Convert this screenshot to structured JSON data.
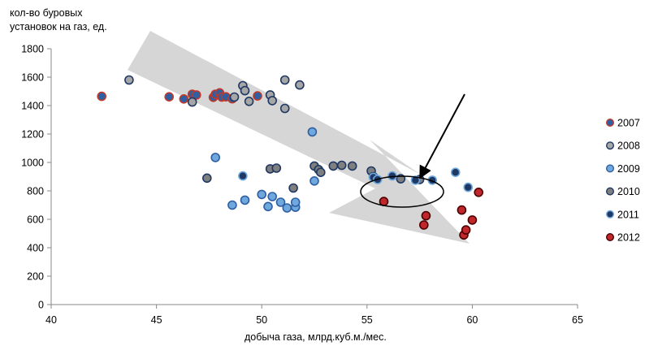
{
  "chart_data": {
    "type": "scatter",
    "ylabel_lines": [
      "кол-во буровых",
      "установок на газ, ед."
    ],
    "xlabel": "добыча газа, млрд.куб.м./мес.",
    "xlim": [
      40,
      65
    ],
    "ylim": [
      0,
      1800
    ],
    "xticks": [
      40,
      45,
      50,
      55,
      60,
      65
    ],
    "yticks": [
      0,
      200,
      400,
      600,
      800,
      1000,
      1200,
      1400,
      1600,
      1800
    ],
    "grid": false,
    "legend_position": "right",
    "series": [
      {
        "name": "2007",
        "color": "#2e5fa3",
        "stroke": "#c0392b",
        "points": [
          [
            42.4,
            1465
          ],
          [
            45.6,
            1462
          ],
          [
            46.3,
            1447
          ],
          [
            46.7,
            1480
          ],
          [
            46.9,
            1475
          ],
          [
            47.7,
            1458
          ],
          [
            47.8,
            1480
          ],
          [
            48.0,
            1490
          ],
          [
            48.1,
            1460
          ],
          [
            48.3,
            1462
          ],
          [
            48.6,
            1448
          ],
          [
            49.8,
            1468
          ]
        ]
      },
      {
        "name": "2008",
        "color": "#a6a6a6",
        "stroke": "#1f3864",
        "points": [
          [
            43.7,
            1580
          ],
          [
            46.7,
            1425
          ],
          [
            48.7,
            1460
          ],
          [
            49.1,
            1540
          ],
          [
            49.2,
            1505
          ],
          [
            49.4,
            1430
          ],
          [
            50.4,
            1475
          ],
          [
            50.5,
            1435
          ],
          [
            51.1,
            1580
          ],
          [
            51.1,
            1380
          ],
          [
            51.8,
            1545
          ]
        ]
      },
      {
        "name": "2009",
        "color": "#6fa8dc",
        "stroke": "#2e5fa3",
        "points": [
          [
            47.8,
            1035
          ],
          [
            48.6,
            700
          ],
          [
            49.2,
            735
          ],
          [
            50.0,
            775
          ],
          [
            50.3,
            690
          ],
          [
            50.5,
            760
          ],
          [
            50.9,
            720
          ],
          [
            51.2,
            680
          ],
          [
            51.6,
            685
          ],
          [
            51.6,
            720
          ],
          [
            52.4,
            1215
          ],
          [
            52.5,
            870
          ]
        ]
      },
      {
        "name": "2010",
        "color": "#7f7f7f",
        "stroke": "#1f3864",
        "points": [
          [
            47.4,
            890
          ],
          [
            50.4,
            955
          ],
          [
            50.7,
            960
          ],
          [
            51.5,
            820
          ],
          [
            52.5,
            975
          ],
          [
            52.7,
            950
          ],
          [
            52.8,
            930
          ],
          [
            53.4,
            975
          ],
          [
            53.8,
            980
          ],
          [
            54.3,
            975
          ],
          [
            55.2,
            940
          ],
          [
            55.3,
            900
          ],
          [
            56.6,
            885
          ],
          [
            57.5,
            880
          ]
        ]
      },
      {
        "name": "2011",
        "color": "#1f3864",
        "stroke": "#6fa8dc",
        "points": [
          [
            49.1,
            905
          ],
          [
            55.3,
            895
          ],
          [
            55.5,
            880
          ],
          [
            56.2,
            905
          ],
          [
            57.3,
            875
          ],
          [
            58.1,
            875
          ],
          [
            59.2,
            930
          ],
          [
            59.8,
            825
          ]
        ]
      },
      {
        "name": "2012",
        "color": "#c0272d",
        "stroke": "#4d0000",
        "points": [
          [
            55.8,
            725
          ],
          [
            57.7,
            560
          ],
          [
            57.8,
            625
          ],
          [
            59.5,
            665
          ],
          [
            59.6,
            490
          ],
          [
            59.7,
            525
          ],
          [
            60.0,
            595
          ],
          [
            60.3,
            790
          ]
        ]
      }
    ]
  }
}
